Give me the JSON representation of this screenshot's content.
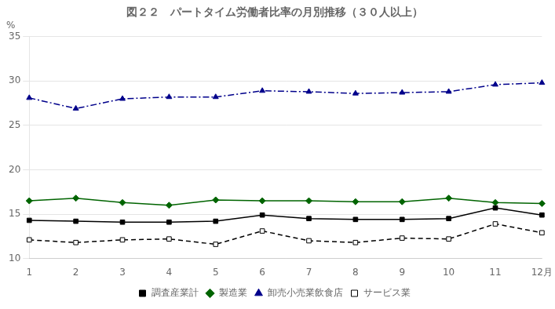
{
  "chart_data": {
    "type": "line",
    "title": "図２２　パートタイム労働者比率の月別推移（３０人以上）",
    "ylabel": "%",
    "categories": [
      "1",
      "2",
      "3",
      "4",
      "5",
      "6",
      "7",
      "8",
      "9",
      "10",
      "11",
      "12月"
    ],
    "series": [
      {
        "name": "調査産業計",
        "color": "#000000",
        "marker": "square",
        "line_style": "solid",
        "values": [
          14.3,
          14.2,
          14.1,
          14.1,
          14.2,
          14.9,
          14.5,
          14.4,
          14.4,
          14.5,
          15.7,
          14.9
        ]
      },
      {
        "name": "製造業",
        "color": "#006400",
        "marker": "diamond",
        "line_style": "solid",
        "values": [
          16.5,
          16.8,
          16.3,
          16.0,
          16.6,
          16.5,
          16.5,
          16.4,
          16.4,
          16.8,
          16.3,
          16.2
        ]
      },
      {
        "name": "卸売小売業飲食店",
        "color": "#00008B",
        "marker": "triangle",
        "line_style": "dashdot",
        "values": [
          28.1,
          26.9,
          28.0,
          28.2,
          28.2,
          28.9,
          28.8,
          28.6,
          28.7,
          28.8,
          29.6,
          29.8
        ]
      },
      {
        "name": "サービス業",
        "color": "#000000",
        "marker": "open_square",
        "line_style": "dashed",
        "values": [
          12.1,
          11.8,
          12.1,
          12.2,
          11.6,
          13.1,
          12.0,
          11.8,
          12.3,
          12.2,
          13.9,
          12.9
        ]
      }
    ],
    "ylim": [
      10,
      35
    ],
    "yticks": [
      10,
      15,
      20,
      25,
      30,
      35
    ],
    "grid": true,
    "legend": "bottom"
  }
}
